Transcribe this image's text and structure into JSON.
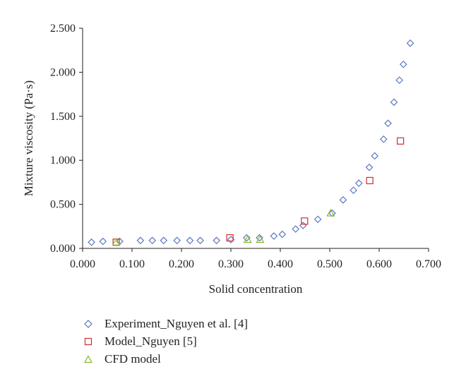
{
  "chart_data": {
    "type": "scatter",
    "xlabel": "Solid concentration",
    "ylabel": "Mixture viscosity (Pa·s)",
    "xlim": [
      0,
      0.7
    ],
    "ylim": [
      0,
      2.5
    ],
    "xticks": [
      "0.000",
      "0.100",
      "0.200",
      "0.300",
      "0.400",
      "0.500",
      "0.600",
      "0.700"
    ],
    "yticks": [
      "0.000",
      "0.500",
      "1.000",
      "1.500",
      "2.000",
      "2.500"
    ],
    "grid": false,
    "legend_position": "bottom",
    "series": [
      {
        "name": "Experiment_Nguyen et al. [4]",
        "marker": "diamond",
        "color": "#5b79c1",
        "points": [
          [
            0.018,
            0.07
          ],
          [
            0.041,
            0.08
          ],
          [
            0.075,
            0.08
          ],
          [
            0.117,
            0.09
          ],
          [
            0.141,
            0.09
          ],
          [
            0.164,
            0.09
          ],
          [
            0.191,
            0.09
          ],
          [
            0.217,
            0.09
          ],
          [
            0.238,
            0.09
          ],
          [
            0.271,
            0.09
          ],
          [
            0.3,
            0.1
          ],
          [
            0.332,
            0.12
          ],
          [
            0.358,
            0.12
          ],
          [
            0.387,
            0.14
          ],
          [
            0.404,
            0.16
          ],
          [
            0.431,
            0.22
          ],
          [
            0.446,
            0.26
          ],
          [
            0.476,
            0.33
          ],
          [
            0.505,
            0.4
          ],
          [
            0.527,
            0.55
          ],
          [
            0.548,
            0.66
          ],
          [
            0.559,
            0.74
          ],
          [
            0.58,
            0.92
          ],
          [
            0.591,
            1.05
          ],
          [
            0.609,
            1.24
          ],
          [
            0.618,
            1.42
          ],
          [
            0.63,
            1.66
          ],
          [
            0.641,
            1.91
          ],
          [
            0.649,
            2.09
          ],
          [
            0.663,
            2.33
          ]
        ]
      },
      {
        "name": "Model_Nguyen [5]",
        "marker": "square",
        "color": "#d42b2b",
        "points": [
          [
            0.068,
            0.07
          ],
          [
            0.298,
            0.12
          ],
          [
            0.449,
            0.31
          ],
          [
            0.581,
            0.77
          ],
          [
            0.643,
            1.22
          ]
        ]
      },
      {
        "name": "CFD model",
        "marker": "triangle",
        "color": "#8cb82b",
        "points": [
          [
            0.068,
            0.07
          ],
          [
            0.334,
            0.1
          ],
          [
            0.359,
            0.1
          ],
          [
            0.502,
            0.4
          ]
        ]
      }
    ]
  }
}
